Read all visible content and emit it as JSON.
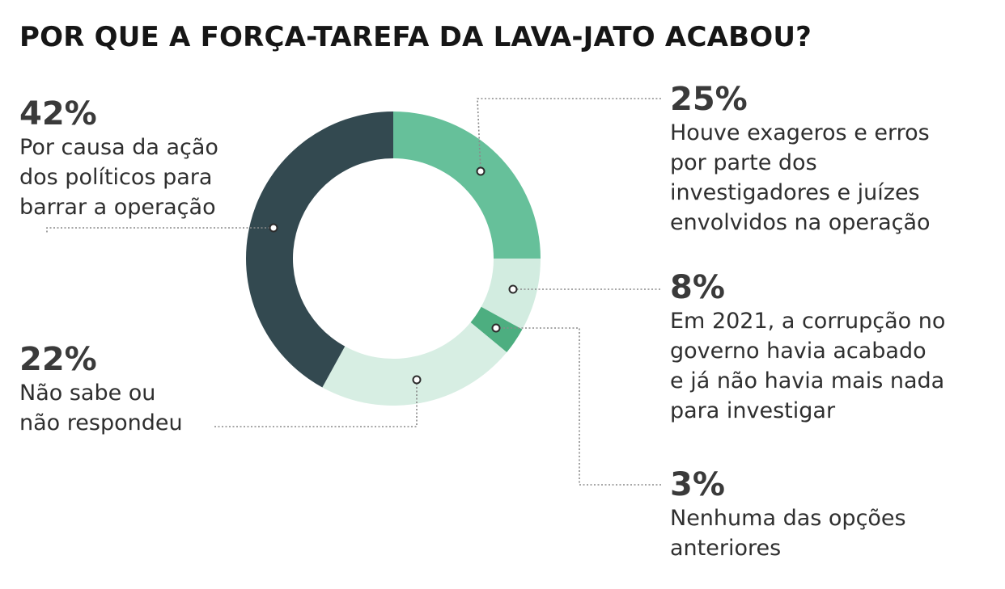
{
  "chart_data": {
    "type": "pie",
    "title": "POR QUE A FORÇA-TAREFA DA LAVA-JATO ACABOU?",
    "donut": true,
    "slices": [
      {
        "label_pct": "25%",
        "value": 25,
        "color": "#66c09a",
        "desc_lines": [
          "Houve exageros e erros",
          "por parte dos",
          "investigadores e juízes",
          "envolvidos na operação"
        ]
      },
      {
        "label_pct": "8%",
        "value": 8,
        "color": "#d2ece0",
        "desc_lines": [
          "Em 2021, a corrupção no",
          "governo havia acabado",
          "e já não havia mais nada",
          "para investigar"
        ]
      },
      {
        "label_pct": "3%",
        "value": 3,
        "color": "#4dae80",
        "desc_lines": [
          "Nenhuma das opções",
          "anteriores"
        ]
      },
      {
        "label_pct": "22%",
        "value": 22,
        "color": "#d7eee3",
        "desc_lines": [
          "Não sabe ou",
          "não respondeu"
        ]
      },
      {
        "label_pct": "42%",
        "value": 42,
        "color": "#334950",
        "desc_lines": [
          "Por causa da ação",
          "dos políticos para",
          "barrar a operação"
        ]
      }
    ]
  }
}
